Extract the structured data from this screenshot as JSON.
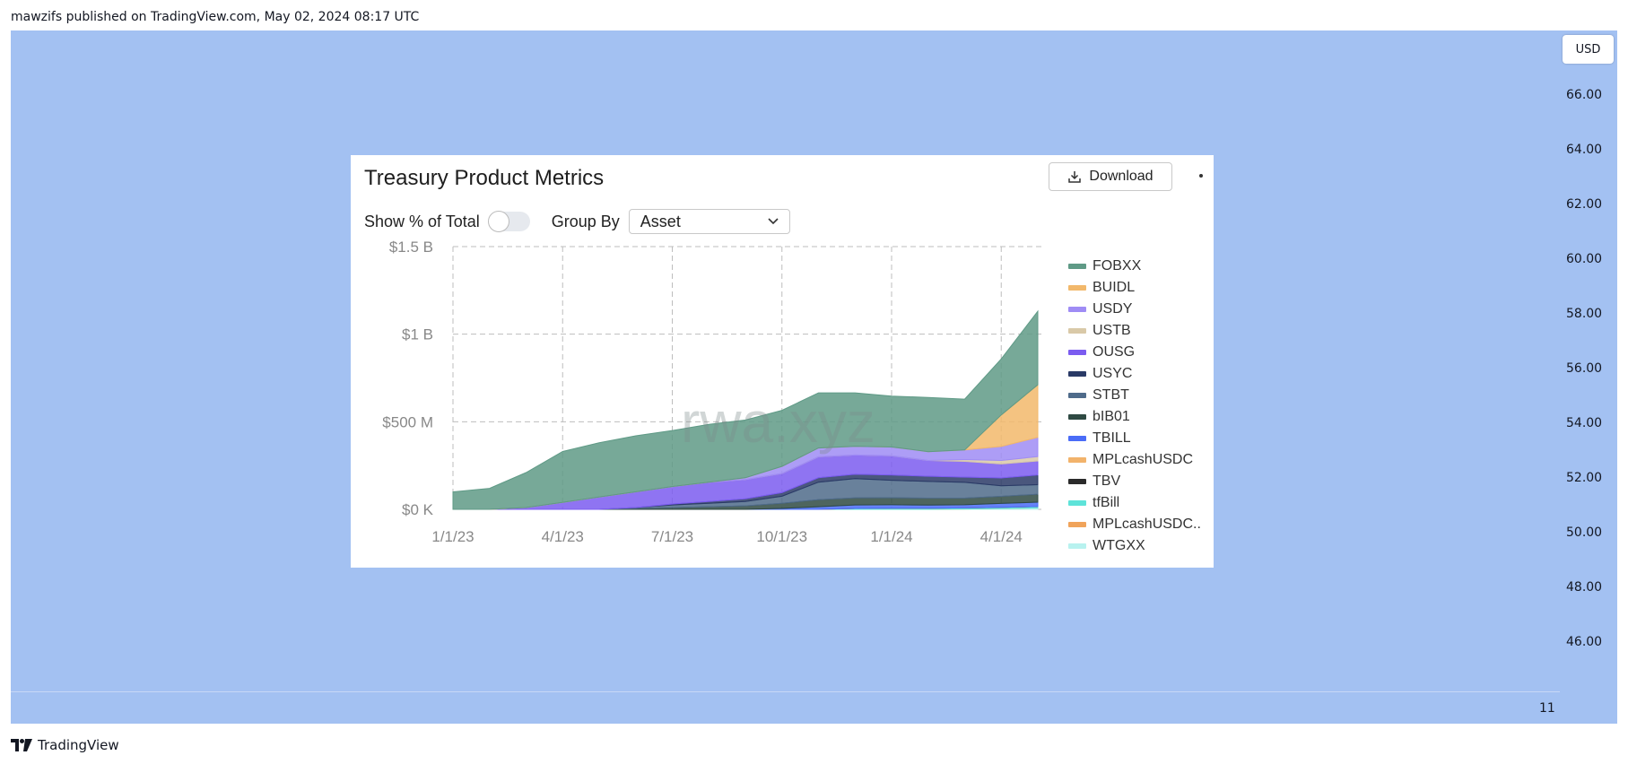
{
  "header": {
    "publisher_line": "mawzifs published on TradingView.com, May 02, 2024 08:17 UTC"
  },
  "price_axis": {
    "currency_button": "USD",
    "labels": [
      "66.00",
      "64.00",
      "62.00",
      "60.00",
      "58.00",
      "56.00",
      "54.00",
      "52.00",
      "50.00",
      "48.00",
      "46.00"
    ]
  },
  "time_axis": {
    "visible_label": "11"
  },
  "footer": {
    "brand": "TradingView"
  },
  "card": {
    "title": "Treasury Product Metrics",
    "download_label": "Download",
    "show_pct_label": "Show % of Total",
    "group_by_label": "Group By",
    "group_by_value": "Asset",
    "watermark": "rwa.xyz"
  },
  "chart_data": {
    "type": "area",
    "stacked": true,
    "y_tick_labels": [
      "$0 K",
      "$500 M",
      "$1 B",
      "$1.5 B"
    ],
    "y_ticks": [
      0,
      500,
      1000,
      1500
    ],
    "ylim": [
      0,
      1500
    ],
    "x_tick_labels": [
      "1/1/23",
      "4/1/23",
      "7/1/23",
      "10/1/23",
      "1/1/24",
      "4/1/24"
    ],
    "x": [
      "1/1/23",
      "2/1/23",
      "3/1/23",
      "4/1/23",
      "5/1/23",
      "6/1/23",
      "7/1/23",
      "8/1/23",
      "9/1/23",
      "10/1/23",
      "11/1/23",
      "12/1/23",
      "1/1/24",
      "2/1/24",
      "3/1/24",
      "4/1/24",
      "5/1/24"
    ],
    "grid": true,
    "legend_position": "right",
    "series": [
      {
        "name": "WTGXX",
        "color": "#b8f2ef",
        "values": [
          0,
          0,
          0,
          0,
          0,
          0,
          0,
          0,
          0,
          0,
          0,
          0,
          0,
          0,
          2,
          5,
          8
        ]
      },
      {
        "name": "MPLcashUSDC..",
        "color": "#f0a35a",
        "values": [
          0,
          0,
          0,
          0,
          0,
          0,
          0,
          0,
          0,
          0,
          0,
          0,
          0,
          0,
          0,
          0,
          0
        ]
      },
      {
        "name": "tfBill",
        "color": "#5ee3d9",
        "values": [
          0,
          0,
          0,
          0,
          0,
          0,
          0,
          0,
          0,
          0,
          0,
          5,
          6,
          6,
          6,
          7,
          8
        ]
      },
      {
        "name": "TBV",
        "color": "#2b2b2b",
        "values": [
          0,
          0,
          0,
          0,
          0,
          0,
          0,
          0,
          0,
          0,
          0,
          0,
          0,
          0,
          0,
          0,
          0
        ]
      },
      {
        "name": "MPLcashUSDC",
        "color": "#f2b36b",
        "values": [
          0,
          0,
          0,
          0,
          0,
          0,
          0,
          0,
          0,
          0,
          0,
          0,
          0,
          0,
          0,
          0,
          0
        ]
      },
      {
        "name": "TBILL",
        "color": "#4a6cf7",
        "values": [
          0,
          0,
          0,
          0,
          0,
          0,
          0,
          0,
          0,
          5,
          15,
          20,
          20,
          18,
          18,
          22,
          25
        ]
      },
      {
        "name": "bIB01",
        "color": "#2f4a43",
        "values": [
          0,
          0,
          0,
          0,
          0,
          5,
          10,
          15,
          20,
          30,
          40,
          40,
          40,
          40,
          38,
          40,
          45
        ]
      },
      {
        "name": "STBT",
        "color": "#4f6b8a",
        "values": [
          0,
          0,
          0,
          0,
          0,
          5,
          15,
          20,
          25,
          40,
          100,
          110,
          100,
          95,
          90,
          60,
          55
        ]
      },
      {
        "name": "USYC",
        "color": "#2a3a66",
        "values": [
          0,
          0,
          0,
          0,
          0,
          0,
          5,
          10,
          15,
          20,
          25,
          25,
          30,
          30,
          30,
          45,
          55
        ]
      },
      {
        "name": "OUSG",
        "color": "#7b5cf0",
        "values": [
          0,
          0,
          10,
          40,
          70,
          90,
          100,
          110,
          110,
          110,
          120,
          110,
          110,
          90,
          90,
          80,
          80
        ]
      },
      {
        "name": "USTB",
        "color": "#d9c9a8",
        "values": [
          0,
          0,
          0,
          0,
          0,
          0,
          0,
          0,
          0,
          0,
          0,
          0,
          0,
          0,
          10,
          20,
          25
        ]
      },
      {
        "name": "USDY",
        "color": "#9f8cf5",
        "values": [
          0,
          0,
          0,
          0,
          0,
          0,
          0,
          0,
          10,
          40,
          50,
          50,
          50,
          50,
          55,
          80,
          110
        ]
      },
      {
        "name": "BUIDL",
        "color": "#f2b86b",
        "values": [
          0,
          0,
          0,
          0,
          0,
          0,
          0,
          0,
          0,
          0,
          0,
          0,
          0,
          0,
          0,
          180,
          300
        ]
      },
      {
        "name": "FOBXX",
        "color": "#5f9a86",
        "values": [
          100,
          120,
          200,
          290,
          310,
          320,
          320,
          330,
          330,
          320,
          315,
          305,
          290,
          310,
          290,
          320,
          420
        ]
      }
    ]
  }
}
